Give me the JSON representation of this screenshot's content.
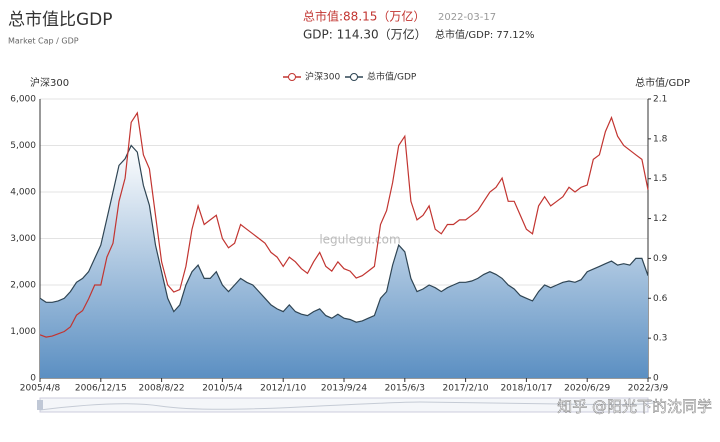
{
  "header": {
    "title": "总市值比GDP",
    "subtitle": "Market Cap / GDP",
    "market_cap": "总市值:88.15（万亿）",
    "date": "2022-03-17",
    "gdp": "GDP: 114.30（万亿）",
    "ratio": "总市值/GDP: 77.12%"
  },
  "watermark": {
    "site": "legulegu.com",
    "author": "知乎 @阳光下的沈同学"
  },
  "chart_data": {
    "type": "line",
    "y_label": "沪深300",
    "y2_label": "总市值/GDP",
    "categories": [
      "2005/4/8",
      null,
      null,
      null,
      null,
      null,
      null,
      null,
      null,
      null,
      "2006/12/15",
      null,
      null,
      null,
      null,
      null,
      null,
      null,
      null,
      null,
      "2008/8/22",
      null,
      null,
      null,
      null,
      null,
      null,
      null,
      null,
      null,
      "2010/5/4",
      null,
      null,
      null,
      null,
      null,
      null,
      null,
      null,
      null,
      "2012/1/10",
      null,
      null,
      null,
      null,
      null,
      null,
      null,
      null,
      null,
      "2013/9/24",
      null,
      null,
      null,
      null,
      null,
      null,
      null,
      null,
      null,
      "2015/6/3",
      null,
      null,
      null,
      null,
      null,
      null,
      null,
      null,
      null,
      "2017/2/10",
      null,
      null,
      null,
      null,
      null,
      null,
      null,
      null,
      null,
      "2018/10/17",
      null,
      null,
      null,
      null,
      null,
      null,
      null,
      null,
      null,
      "2020/6/29",
      null,
      null,
      null,
      null,
      null,
      null,
      null,
      null,
      null,
      "2022/3/9"
    ],
    "series": [
      {
        "name": "沪深300",
        "color": "#c23531",
        "axis": "y",
        "values": [
          930,
          880,
          900,
          950,
          1000,
          1100,
          1350,
          1450,
          1700,
          2000,
          2000,
          2600,
          2900,
          3800,
          4300,
          5500,
          5700,
          4800,
          4500,
          3500,
          2500,
          2000,
          1850,
          1900,
          2400,
          3200,
          3700,
          3300,
          3400,
          3500,
          3000,
          2800,
          2900,
          3300,
          3200,
          3100,
          3000,
          2900,
          2700,
          2600,
          2400,
          2600,
          2500,
          2350,
          2250,
          2500,
          2700,
          2400,
          2300,
          2500,
          2350,
          2300,
          2150,
          2200,
          2300,
          2400,
          3300,
          3600,
          4200,
          5000,
          5200,
          3800,
          3400,
          3500,
          3700,
          3200,
          3100,
          3300,
          3300,
          3400,
          3400,
          3500,
          3600,
          3800,
          4000,
          4100,
          4300,
          3800,
          3800,
          3500,
          3200,
          3100,
          3700,
          3900,
          3700,
          3800,
          3900,
          4100,
          4000,
          4100,
          4150,
          4700,
          4800,
          5300,
          5600,
          5200,
          5000,
          4900,
          4800,
          4700,
          4050
        ]
      },
      {
        "name": "总市值/GDP",
        "color": "#2f4554",
        "axis": "y2",
        "values": [
          0.6,
          0.57,
          0.57,
          0.58,
          0.6,
          0.65,
          0.72,
          0.75,
          0.8,
          0.9,
          1.0,
          1.2,
          1.4,
          1.6,
          1.65,
          1.75,
          1.7,
          1.45,
          1.3,
          1.0,
          0.8,
          0.6,
          0.5,
          0.55,
          0.7,
          0.8,
          0.85,
          0.75,
          0.75,
          0.8,
          0.7,
          0.65,
          0.7,
          0.75,
          0.72,
          0.7,
          0.65,
          0.6,
          0.55,
          0.52,
          0.5,
          0.55,
          0.5,
          0.48,
          0.47,
          0.5,
          0.52,
          0.47,
          0.45,
          0.48,
          0.45,
          0.44,
          0.42,
          0.43,
          0.45,
          0.47,
          0.6,
          0.65,
          0.85,
          1.0,
          0.95,
          0.75,
          0.65,
          0.67,
          0.7,
          0.68,
          0.65,
          0.68,
          0.7,
          0.72,
          0.72,
          0.73,
          0.75,
          0.78,
          0.8,
          0.78,
          0.75,
          0.7,
          0.67,
          0.62,
          0.6,
          0.58,
          0.65,
          0.7,
          0.68,
          0.7,
          0.72,
          0.73,
          0.72,
          0.74,
          0.8,
          0.82,
          0.84,
          0.86,
          0.88,
          0.85,
          0.86,
          0.85,
          0.9,
          0.9,
          0.77
        ]
      }
    ],
    "ylim": [
      0,
      6000
    ],
    "yticks": [
      0,
      {
        "value": 1000,
        "label": "1,000"
      },
      {
        "value": 2000,
        "label": "2,000"
      },
      {
        "value": 3000,
        "label": "3,000"
      },
      {
        "value": 4000,
        "label": "4,000"
      },
      {
        "value": 5000,
        "label": "5,000"
      },
      {
        "value": 6000,
        "label": "6,000"
      }
    ],
    "y2lim": [
      0,
      2.1
    ],
    "y2ticks": [
      0,
      0.3,
      0.6,
      0.9,
      1.2,
      1.5,
      1.8,
      2.1
    ],
    "grid": true
  }
}
